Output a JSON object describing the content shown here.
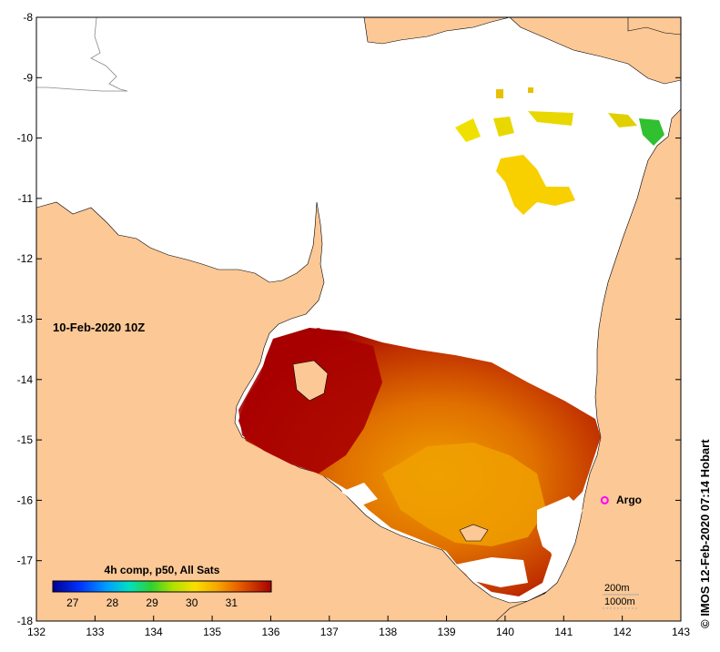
{
  "map": {
    "date_label": "10-Feb-2020 10Z",
    "x_ticks": [
      "132",
      "133",
      "134",
      "135",
      "136",
      "137",
      "138",
      "139",
      "140",
      "141",
      "142",
      "143"
    ],
    "y_ticks": [
      "-8",
      "-9",
      "-10",
      "-11",
      "-12",
      "-13",
      "-14",
      "-15",
      "-16",
      "-17",
      "-18"
    ],
    "lon_range": [
      132,
      143
    ],
    "lat_range": [
      -18,
      -8
    ],
    "land_color": "#fbc896",
    "ocean_color": "#ffffff",
    "legend": {
      "title": "4h comp, p50, All Sats",
      "ticks": [
        "27",
        "28",
        "29",
        "30",
        "31"
      ],
      "range": [
        26.5,
        32
      ]
    },
    "argo": {
      "label": "Argo",
      "lon": 141.7,
      "lat": -16.0,
      "color": "#ff00ff"
    },
    "contours": {
      "label_200": "200m",
      "label_1000": "1000m"
    },
    "credit": "© IMOS 12-Feb-2020 07:14 Hobart"
  }
}
